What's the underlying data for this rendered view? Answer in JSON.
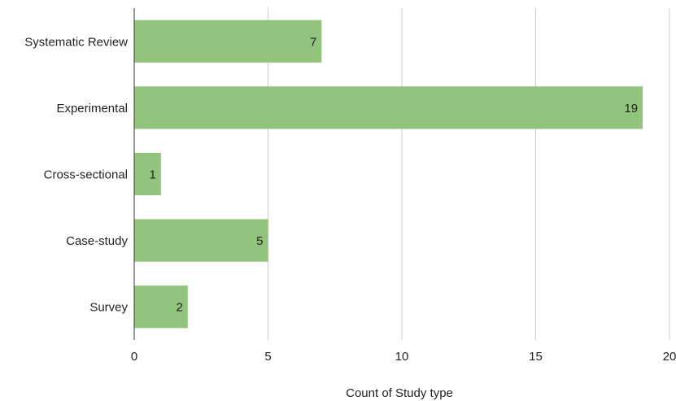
{
  "chart_data": {
    "type": "bar",
    "orientation": "horizontal",
    "categories": [
      "Systematic Review",
      "Experimental",
      "Cross-sectional",
      "Case-study",
      "Survey"
    ],
    "values": [
      7,
      19,
      1,
      5,
      2
    ],
    "xlabel": "Count of Study type",
    "ylabel": "",
    "xlim": [
      0,
      20
    ],
    "xticks": [
      0,
      5,
      10,
      15,
      20
    ],
    "grid": true,
    "bar_color": "#93c47d",
    "data_labels": true
  }
}
